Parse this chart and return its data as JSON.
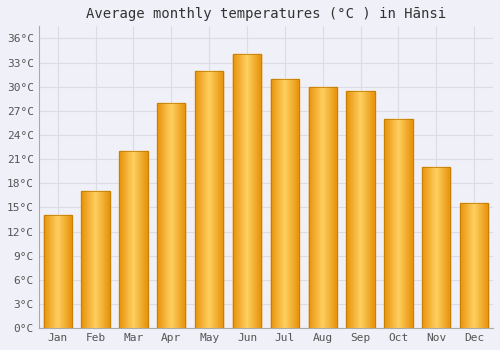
{
  "title": "Average monthly temperatures (°C ) in Hānsi",
  "months": [
    "Jan",
    "Feb",
    "Mar",
    "Apr",
    "May",
    "Jun",
    "Jul",
    "Aug",
    "Sep",
    "Oct",
    "Nov",
    "Dec"
  ],
  "values": [
    14,
    17,
    22,
    28,
    32,
    34,
    31,
    30,
    29.5,
    26,
    20,
    15.5
  ],
  "bar_color_center": "#FFBE3C",
  "bar_color_edge": "#E8920A",
  "bar_gradient_left": "#F5A020",
  "bar_gradient_right": "#FFD060",
  "background_color": "#F0F0F8",
  "plot_bg_color": "#F0F0F8",
  "grid_color": "#DCDCE8",
  "yticks": [
    0,
    3,
    6,
    9,
    12,
    15,
    18,
    21,
    24,
    27,
    30,
    33,
    36
  ],
  "ylim": [
    0,
    37.5
  ],
  "title_fontsize": 10,
  "tick_fontsize": 8,
  "font_family": "monospace"
}
